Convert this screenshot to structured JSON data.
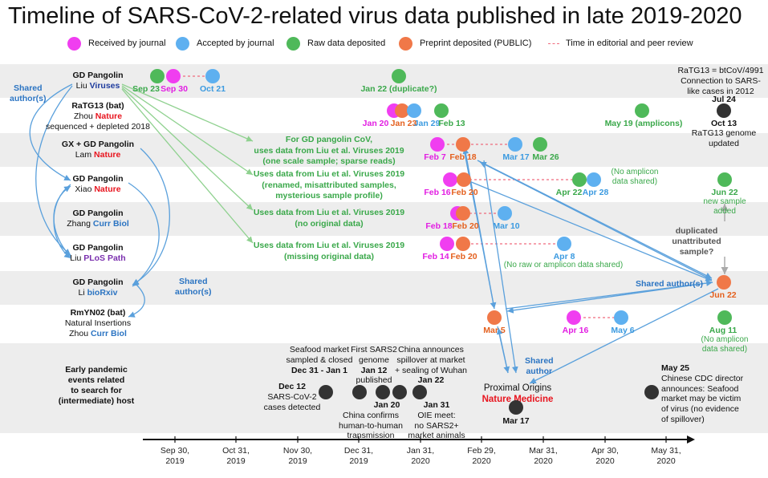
{
  "title": "Timeline of SARS-CoV-2-related virus data published in late 2019-2020",
  "legend": [
    {
      "key": "received",
      "label": "Received by journal",
      "color": "#f03ef0"
    },
    {
      "key": "accepted",
      "label": "Accepted by journal",
      "color": "#5eb0f0"
    },
    {
      "key": "raw",
      "label": "Raw data deposited",
      "color": "#4fb95a"
    },
    {
      "key": "preprint",
      "label": "Preprint deposited (PUBLIC)",
      "color": "#f07848"
    },
    {
      "key": "review",
      "label": "Time in editorial and peer review",
      "color": "#f06b7e"
    }
  ],
  "studies": {
    "liu_viruses": {
      "name": "GD Pangolin",
      "author": "Liu",
      "journal": "Viruses"
    },
    "ratg13": {
      "name": "RaTG13 (bat)",
      "author": "Zhou",
      "journal": "Nature",
      "extra": "sequenced + depleted 2018"
    },
    "lam": {
      "name": "GX + GD Pangolin",
      "author": "Lam",
      "journal": "Nature"
    },
    "xiao": {
      "name": "GD Pangolin",
      "author": "Xiao",
      "journal": "Nature"
    },
    "zhang": {
      "name": "GD Pangolin",
      "author": "Zhang",
      "journal": "Curr Biol"
    },
    "liu_plos": {
      "name": "GD Pangolin",
      "author": "Liu",
      "journal": "PLoS Path"
    },
    "li": {
      "name": "GD Pangolin",
      "author": "Li",
      "journal": "bioRxiv"
    },
    "rmyn02": {
      "name": "RmYN02 (bat)",
      "extra": "Natural Insertions",
      "author": "Zhou",
      "journal": "Curr Biol"
    },
    "early": {
      "line1": "Early pandemic",
      "line2": "events related",
      "line3": "to search for",
      "line4": "(intermediate) host"
    }
  },
  "shared": {
    "left": [
      "Shared",
      "author(s)"
    ],
    "middle": [
      "Shared",
      "author(s)"
    ],
    "right": "Shared author(s)",
    "bottom": [
      "Shared",
      "author"
    ]
  },
  "green_notes": {
    "lam": [
      "For GD pangolin CoV,",
      "uses data from Liu et al.  Viruses 2019",
      "(one scale sample; sparse reads)"
    ],
    "xiao": [
      "Uses data from Liu et al.  Viruses 2019",
      "(renamed, misattributed samples,",
      "mysterious sample profile)"
    ],
    "zhang": [
      "Uses data from Liu et al.  Viruses 2019",
      "(no original data)"
    ],
    "liu_plos": [
      "Uses data from Liu et al.  Viruses 2019",
      "(missing original data)"
    ]
  },
  "points": {
    "liu_sep23": "Sep 23",
    "liu_sep30": "Sep 30",
    "liu_oct21": "Oct 21",
    "liu_jan22": "Jan 22 (duplicate?)",
    "rat_jan20": "Jan 20",
    "rat_jan23": "Jan 23",
    "rat_jan29": "Jan 29",
    "rat_feb13": "Feb 13",
    "rat_may19": "May 19 (amplicons)",
    "lam_feb7": "Feb 7",
    "lam_feb18": "Feb 18",
    "lam_mar17": "Mar 17",
    "lam_mar26": "Mar 26",
    "xiao_feb16": "Feb 16",
    "xiao_feb20": "Feb 20",
    "xiao_apr22": "Apr 22",
    "xiao_apr28": "Apr 28",
    "xiao_noamp": [
      "(No amplicon",
      "data shared)"
    ],
    "xiao_jun22": "Jun 22",
    "xiao_newsample": [
      "new sample",
      "added"
    ],
    "zhang_feb18": "Feb 18",
    "zhang_feb20": "Feb 20",
    "zhang_mar10": "Mar 10",
    "plos_feb14": "Feb 14",
    "plos_feb20": "Feb 20",
    "plos_apr8": "Apr 8",
    "plos_noraw": "(No raw or amplicon data shared)",
    "li_jun22": "Jun 22",
    "rmy_mar5": "Mar 5",
    "rmy_apr16": "Apr 16",
    "rmy_may6": "May 6",
    "rmy_aug11": "Aug 11",
    "rmy_noamp": [
      "(No amplicon",
      "data shared)"
    ]
  },
  "ratg13_note": {
    "line1": "RaTG13 = btCoV/4991",
    "line2": "Connection to SARS-",
    "line3": "like cases in 2012",
    "jul24": "Jul 24",
    "oct13": "Oct 13",
    "update": [
      "RaTG13 genome",
      "updated"
    ]
  },
  "duplicated": [
    "duplicated",
    "unattributed",
    "sample?"
  ],
  "events": {
    "dec12": {
      "date": "Dec 12",
      "text": [
        "SARS-CoV-2",
        "cases detected"
      ]
    },
    "seafood": {
      "text": [
        "Seafood market",
        "sampled & closed"
      ],
      "date": "Dec 31 - Jan 1"
    },
    "first": {
      "text": [
        "First SARS2",
        "genome"
      ],
      "date": "Jan 12",
      "text2": "published"
    },
    "spill": {
      "text": [
        "China announces",
        "spillover at market",
        "+ sealing of Wuhan"
      ],
      "date": "Jan 22"
    },
    "jan20": {
      "date": "Jan 20",
      "text": [
        "China confirms",
        "human-to-human",
        "transmission"
      ]
    },
    "jan31": {
      "date": "Jan 31",
      "text": [
        "OIE meet:",
        "no SARS2+",
        "market animals"
      ]
    },
    "prox": {
      "line1": "Proximal Origins",
      "journal": "Nature Medicine",
      "date": "Mar 17"
    },
    "may25": {
      "date": "May 25",
      "text": [
        "Chinese CDC director",
        "announces: Seafood",
        "market may be victim",
        "of virus (no evidence",
        "of spillover)"
      ]
    }
  },
  "axis": {
    "ticks": [
      {
        "line1": "Sep 30,",
        "line2": "2019"
      },
      {
        "line1": "Oct 31,",
        "line2": "2019"
      },
      {
        "line1": "Nov 30,",
        "line2": "2019"
      },
      {
        "line1": "Dec 31,",
        "line2": "2019"
      },
      {
        "line1": "Jan 31,",
        "line2": "2020"
      },
      {
        "line1": "Feb 29,",
        "line2": "2020"
      },
      {
        "line1": "Mar 31,",
        "line2": "2020"
      },
      {
        "line1": "Apr 30,",
        "line2": "2020"
      },
      {
        "line1": "May 31,",
        "line2": "2020"
      }
    ]
  }
}
